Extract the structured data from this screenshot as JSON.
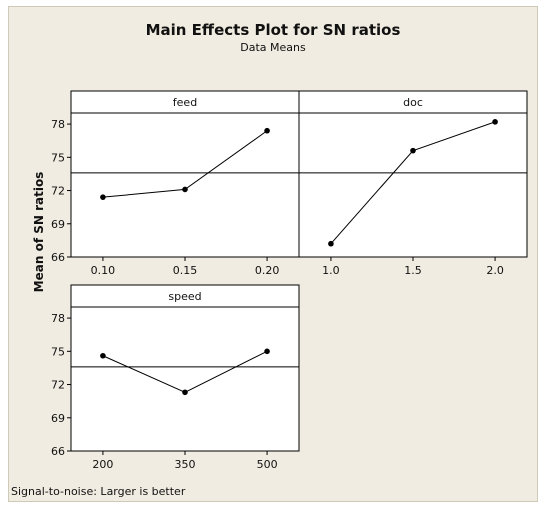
{
  "chart_data": {
    "type": "line",
    "title": "Main Effects Plot for SN ratios",
    "subtitle": "Data Means",
    "ylabel": "Mean of SN ratios",
    "footnote": "Signal-to-noise: Larger is better",
    "ylim": [
      66,
      79
    ],
    "yticks": [
      "66",
      "69",
      "72",
      "75",
      "78"
    ],
    "mean_line": 73.6,
    "grid": false,
    "series": [
      {
        "name": "feed",
        "x": [
          "0.10",
          "0.15",
          "0.20"
        ],
        "values": [
          71.4,
          72.1,
          77.4
        ]
      },
      {
        "name": "doc",
        "x": [
          "1.0",
          "1.5",
          "2.0"
        ],
        "values": [
          67.2,
          75.6,
          78.2
        ]
      },
      {
        "name": "speed",
        "x": [
          "200",
          "350",
          "500"
        ],
        "values": [
          74.6,
          71.3,
          75.0
        ]
      }
    ]
  },
  "colors": {
    "background": "#f0ece1",
    "plot": "#ffffff",
    "line": "#000000"
  }
}
